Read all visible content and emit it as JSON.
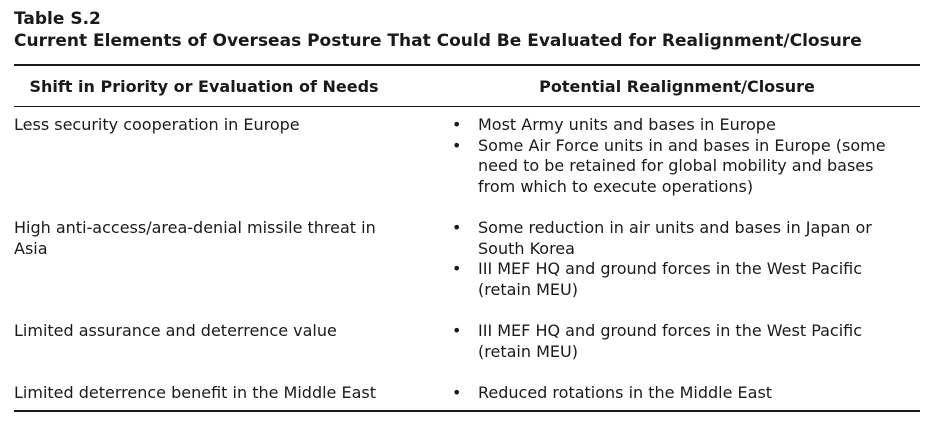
{
  "table": {
    "number": "Table S.2",
    "title": "Current Elements of Overseas Posture That Could Be Evaluated for Realignment/Closure",
    "columns": [
      "Shift in Priority or Evaluation of Needs",
      "Potential Realignment/Closure"
    ],
    "bullet_glyph": "•",
    "rows": [
      {
        "need": "Less security cooperation in Europe",
        "items": [
          "Most Army units and bases in Europe",
          "Some Air Force units in and bases in Europe (some need to be retained for global mobility and bases from which to execute operations)"
        ]
      },
      {
        "need": "High anti-access/area-denial missile threat in Asia",
        "items": [
          "Some reduction in air units and bases in Japan or South Korea",
          "III MEF HQ and ground forces in the West Pacific (retain MEU)"
        ]
      },
      {
        "need": "Limited assurance and deterrence value",
        "items": [
          "III MEF HQ and ground forces in the West Pacific (retain MEU)"
        ]
      },
      {
        "need": "Limited deterrence benefit in the Middle East",
        "items": [
          "Reduced rotations in the Middle East"
        ]
      }
    ]
  }
}
